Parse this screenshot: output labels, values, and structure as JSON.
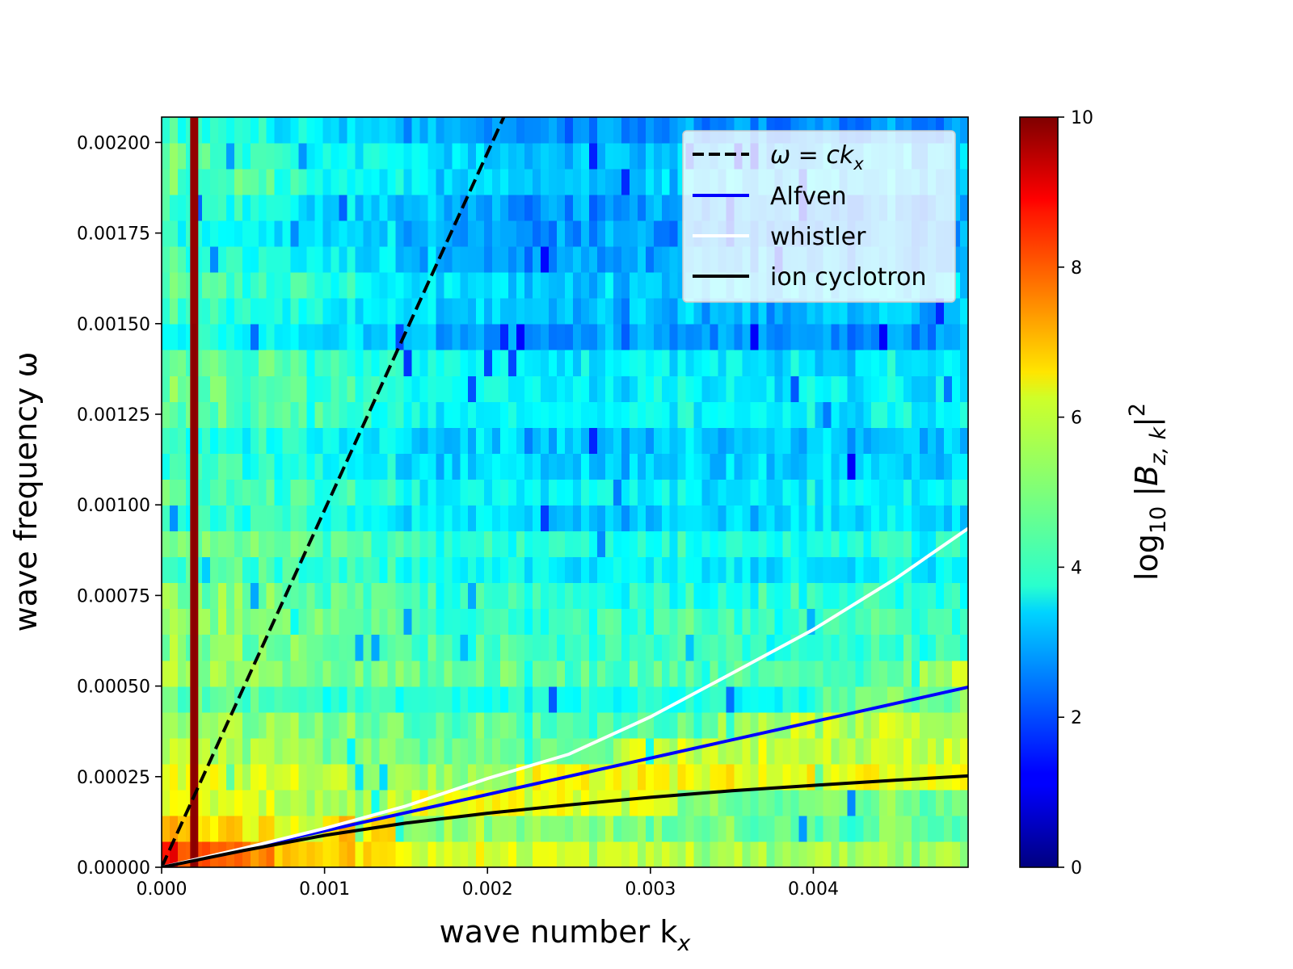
{
  "chart_data": {
    "type": "heatmap",
    "xlabel": "wave number k",
    "xlabel_subscript": "x",
    "ylabel": "wave frequency ω",
    "colorbar_label": "log10 |Bz,k|²",
    "colorbar_label_parts": {
      "prefix": "log",
      "prefix_sub": "10",
      "body": " |B",
      "body_sub": "z, k",
      "suffix": "|",
      "suffix_sup": "2"
    },
    "colormap": "jet",
    "xlim": [
      0.0,
      0.00495
    ],
    "ylim": [
      0.0,
      0.00207
    ],
    "clim": [
      0,
      10
    ],
    "x_ticks": [
      "0.000",
      "0.001",
      "0.002",
      "0.003",
      "0.004"
    ],
    "x_tick_values": [
      0.0,
      0.001,
      0.002,
      0.003,
      0.004
    ],
    "y_ticks": [
      "0.00000",
      "0.00025",
      "0.00050",
      "0.00075",
      "0.00100",
      "0.00125",
      "0.00150",
      "0.00175",
      "0.00200"
    ],
    "y_tick_values": [
      0.0,
      0.00025,
      0.0005,
      0.00075,
      0.001,
      0.00125,
      0.0015,
      0.00175,
      0.002
    ],
    "colorbar_ticks": [
      "0",
      "2",
      "4",
      "6",
      "8",
      "10"
    ],
    "colorbar_tick_values": [
      0,
      2,
      4,
      6,
      8,
      10
    ],
    "heatmap_grid": {
      "nx": 100,
      "ny": 29,
      "dx": 4.95e-05,
      "dy": 7.14e-05
    },
    "vertical_band": {
      "x": 0.0002,
      "value": 9.8
    },
    "lines": [
      {
        "name": "ω = ck",
        "name_sub": "x",
        "style": "dashed",
        "color": "#000000",
        "x": [
          0.0,
          0.0021
        ],
        "y": [
          0.0,
          0.00207
        ]
      },
      {
        "name": "Alfven",
        "style": "solid",
        "color": "#0000ff",
        "x": [
          0.0,
          0.00495
        ],
        "y": [
          0.0,
          0.000497
        ]
      },
      {
        "name": "whistler",
        "style": "solid",
        "color": "#ffffff",
        "x": [
          0.0,
          0.0005,
          0.001,
          0.0015,
          0.002,
          0.0025,
          0.003,
          0.0035,
          0.004,
          0.0045,
          0.00495
        ],
        "y": [
          0.0,
          5.2e-05,
          0.000107,
          0.000169,
          0.000245,
          0.000312,
          0.000415,
          0.000535,
          0.000656,
          0.000795,
          0.000935
        ]
      },
      {
        "name": "ion cyclotron",
        "style": "solid",
        "color": "#000000",
        "x": [
          0.0,
          0.0005,
          0.001,
          0.0015,
          0.002,
          0.0025,
          0.003,
          0.0035,
          0.004,
          0.0045,
          0.00495
        ],
        "y": [
          0.0,
          4.6e-05,
          8.8e-05,
          0.000122,
          0.000149,
          0.000172,
          0.000193,
          0.000211,
          0.000226,
          0.00024,
          0.000252
        ]
      }
    ],
    "legend_position": "upper right"
  }
}
